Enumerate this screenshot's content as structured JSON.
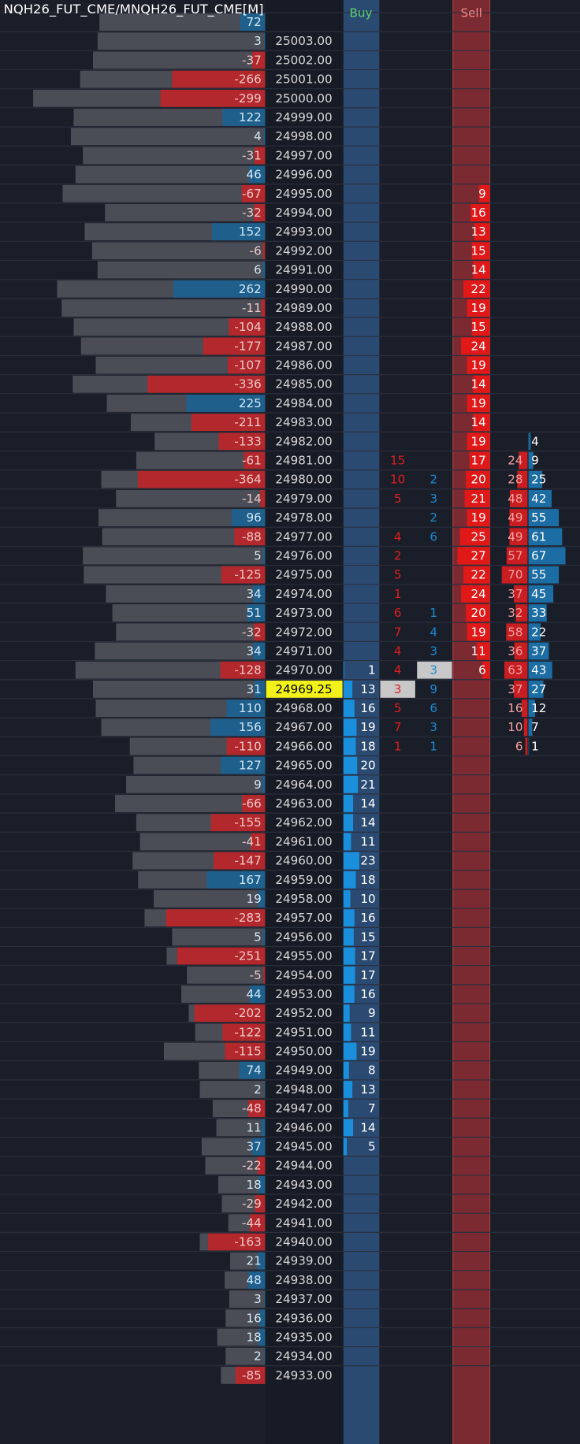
{
  "header": {
    "title": "NQH26_FUT_CME/MNQH26_FUT_CME[M]",
    "buy_label": "Buy",
    "sell_label": "Sell"
  },
  "rows": [
    {
      "d": 72,
      "v": 180
    },
    {
      "p": "25003.00",
      "d": 3,
      "v": 182
    },
    {
      "p": "25002.00",
      "d": -37,
      "v": 187
    },
    {
      "p": "25001.00",
      "d": -266,
      "v": 201
    },
    {
      "p": "25000.00",
      "d": -299,
      "v": 252
    },
    {
      "p": "24999.00",
      "d": 122,
      "v": 208
    },
    {
      "p": "24998.00",
      "d": 4,
      "v": 211
    },
    {
      "p": "24997.00",
      "d": -31,
      "v": 198
    },
    {
      "p": "24996.00",
      "d": 46,
      "v": 206
    },
    {
      "p": "24995.00",
      "d": -67,
      "v": 220,
      "s": 9
    },
    {
      "p": "24994.00",
      "d": -32,
      "v": 174,
      "s": 16
    },
    {
      "p": "24993.00",
      "d": 152,
      "v": 196,
      "s": 13
    },
    {
      "p": "24992.00",
      "d": -6,
      "v": 188,
      "s": 15
    },
    {
      "p": "24991.00",
      "d": 6,
      "v": 182,
      "s": 14
    },
    {
      "p": "24990.00",
      "d": 262,
      "v": 226,
      "s": 22
    },
    {
      "p": "24989.00",
      "d": -11,
      "v": 221,
      "s": 19
    },
    {
      "p": "24988.00",
      "d": -104,
      "v": 208,
      "s": 15
    },
    {
      "p": "24987.00",
      "d": -177,
      "v": 200,
      "s": 24
    },
    {
      "p": "24986.00",
      "d": -107,
      "v": 184,
      "s": 19
    },
    {
      "p": "24985.00",
      "d": -336,
      "v": 209,
      "s": 14
    },
    {
      "p": "24984.00",
      "d": 225,
      "v": 172,
      "s": 19
    },
    {
      "p": "24983.00",
      "d": -211,
      "v": 146,
      "s": 14
    },
    {
      "p": "24982.00",
      "d": -133,
      "v": 120,
      "s": 19,
      "pb": 4
    },
    {
      "p": "24981.00",
      "d": -61,
      "v": 140,
      "bid": 15,
      "s": 17,
      "pr": 24,
      "pb": 9
    },
    {
      "p": "24980.00",
      "d": -364,
      "v": 178,
      "bid": 10,
      "ask": 2,
      "s": 20,
      "pr": 28,
      "pb": 25
    },
    {
      "p": "24979.00",
      "d": -14,
      "v": 162,
      "bid": 5,
      "ask": 3,
      "s": 21,
      "pr": 48,
      "pb": 42
    },
    {
      "p": "24978.00",
      "d": 96,
      "v": 181,
      "ask": 2,
      "s": 19,
      "pr": 49,
      "pb": 55
    },
    {
      "p": "24977.00",
      "d": -88,
      "v": 177,
      "bid": 4,
      "ask": 6,
      "s": 25,
      "pr": 49,
      "pb": 61
    },
    {
      "p": "24976.00",
      "d": 5,
      "v": 198,
      "bid": 2,
      "s": 27,
      "pr": 57,
      "pb": 67
    },
    {
      "p": "24975.00",
      "d": -125,
      "v": 197,
      "bid": 5,
      "s": 22,
      "pr": 70,
      "pb": 55
    },
    {
      "p": "24974.00",
      "d": 34,
      "v": 173,
      "bid": 1,
      "s": 24,
      "pr": 37,
      "pb": 45
    },
    {
      "p": "24973.00",
      "d": 51,
      "v": 166,
      "bid": 6,
      "ask": 1,
      "s": 20,
      "pr": 32,
      "pb": 33
    },
    {
      "p": "24972.00",
      "d": -32,
      "v": 162,
      "bid": 7,
      "ask": 4,
      "s": 19,
      "pr": 58,
      "pb": 22
    },
    {
      "p": "24971.00",
      "d": 34,
      "v": 185,
      "bid": 4,
      "ask": 3,
      "s": 11,
      "pr": 36,
      "pb": 37
    },
    {
      "p": "24970.00",
      "d": -128,
      "v": 206,
      "b": 1,
      "bid": 4,
      "ask": 3,
      "highlight": "ask",
      "s": 6,
      "pr": 63,
      "pb": 43
    },
    {
      "p": "24969.25",
      "current": true,
      "d": 31,
      "v": 187,
      "b": 13,
      "bid": 3,
      "ask": 9,
      "highlight": "bid",
      "pr": 37,
      "pb": 27
    },
    {
      "p": "24968.00",
      "d": 110,
      "v": 184,
      "b": 16,
      "bid": 5,
      "ask": 6,
      "pr": 16,
      "pb": 12
    },
    {
      "p": "24967.00",
      "d": 156,
      "v": 178,
      "b": 19,
      "bid": 7,
      "ask": 3,
      "pr": 10,
      "pb": 7
    },
    {
      "p": "24966.00",
      "d": -110,
      "v": 147,
      "b": 18,
      "bid": 1,
      "ask": 1,
      "pr": 6,
      "pb": 1
    },
    {
      "p": "24965.00",
      "d": 127,
      "v": 143,
      "b": 20
    },
    {
      "p": "24964.00",
      "d": 9,
      "v": 151,
      "b": 21
    },
    {
      "p": "24963.00",
      "d": -66,
      "v": 163,
      "b": 14
    },
    {
      "p": "24962.00",
      "d": -155,
      "v": 140,
      "b": 14
    },
    {
      "p": "24961.00",
      "d": -41,
      "v": 136,
      "b": 11
    },
    {
      "p": "24960.00",
      "d": -147,
      "v": 144,
      "b": 23
    },
    {
      "p": "24959.00",
      "d": 167,
      "v": 138,
      "b": 18
    },
    {
      "p": "24958.00",
      "d": 19,
      "v": 121,
      "b": 10
    },
    {
      "p": "24957.00",
      "d": -283,
      "v": 131,
      "b": 16
    },
    {
      "p": "24956.00",
      "d": 5,
      "v": 101,
      "b": 15
    },
    {
      "p": "24955.00",
      "d": -251,
      "v": 107,
      "b": 17
    },
    {
      "p": "24954.00",
      "d": -5,
      "v": 85,
      "b": 17
    },
    {
      "p": "24953.00",
      "d": 44,
      "v": 91,
      "b": 16
    },
    {
      "p": "24952.00",
      "d": -202,
      "v": 83,
      "b": 9
    },
    {
      "p": "24951.00",
      "d": -122,
      "v": 76,
      "b": 11
    },
    {
      "p": "24950.00",
      "d": -115,
      "v": 110,
      "b": 19
    },
    {
      "p": "24949.00",
      "d": 74,
      "v": 72,
      "b": 8
    },
    {
      "p": "24948.00",
      "d": 2,
      "v": 71,
      "b": 13
    },
    {
      "p": "24947.00",
      "d": -48,
      "v": 57,
      "b": 7
    },
    {
      "p": "24946.00",
      "d": 11,
      "v": 53,
      "b": 14
    },
    {
      "p": "24945.00",
      "d": 37,
      "v": 69,
      "b": 5
    },
    {
      "p": "24944.00",
      "d": -22,
      "v": 65
    },
    {
      "p": "24943.00",
      "d": 18,
      "v": 51
    },
    {
      "p": "24942.00",
      "d": -29,
      "v": 47
    },
    {
      "p": "24941.00",
      "d": -44,
      "v": 40
    },
    {
      "p": "24940.00",
      "d": -163,
      "v": 71
    },
    {
      "p": "24939.00",
      "d": 21,
      "v": 38
    },
    {
      "p": "24938.00",
      "d": 48,
      "v": 44
    },
    {
      "p": "24937.00",
      "d": 3,
      "v": 39
    },
    {
      "p": "24936.00",
      "d": 16,
      "v": 43
    },
    {
      "p": "24935.00",
      "d": 18,
      "v": 52
    },
    {
      "p": "24934.00",
      "d": 2,
      "v": 43
    },
    {
      "p": "24933.00",
      "d": -85,
      "v": 48
    }
  ]
}
